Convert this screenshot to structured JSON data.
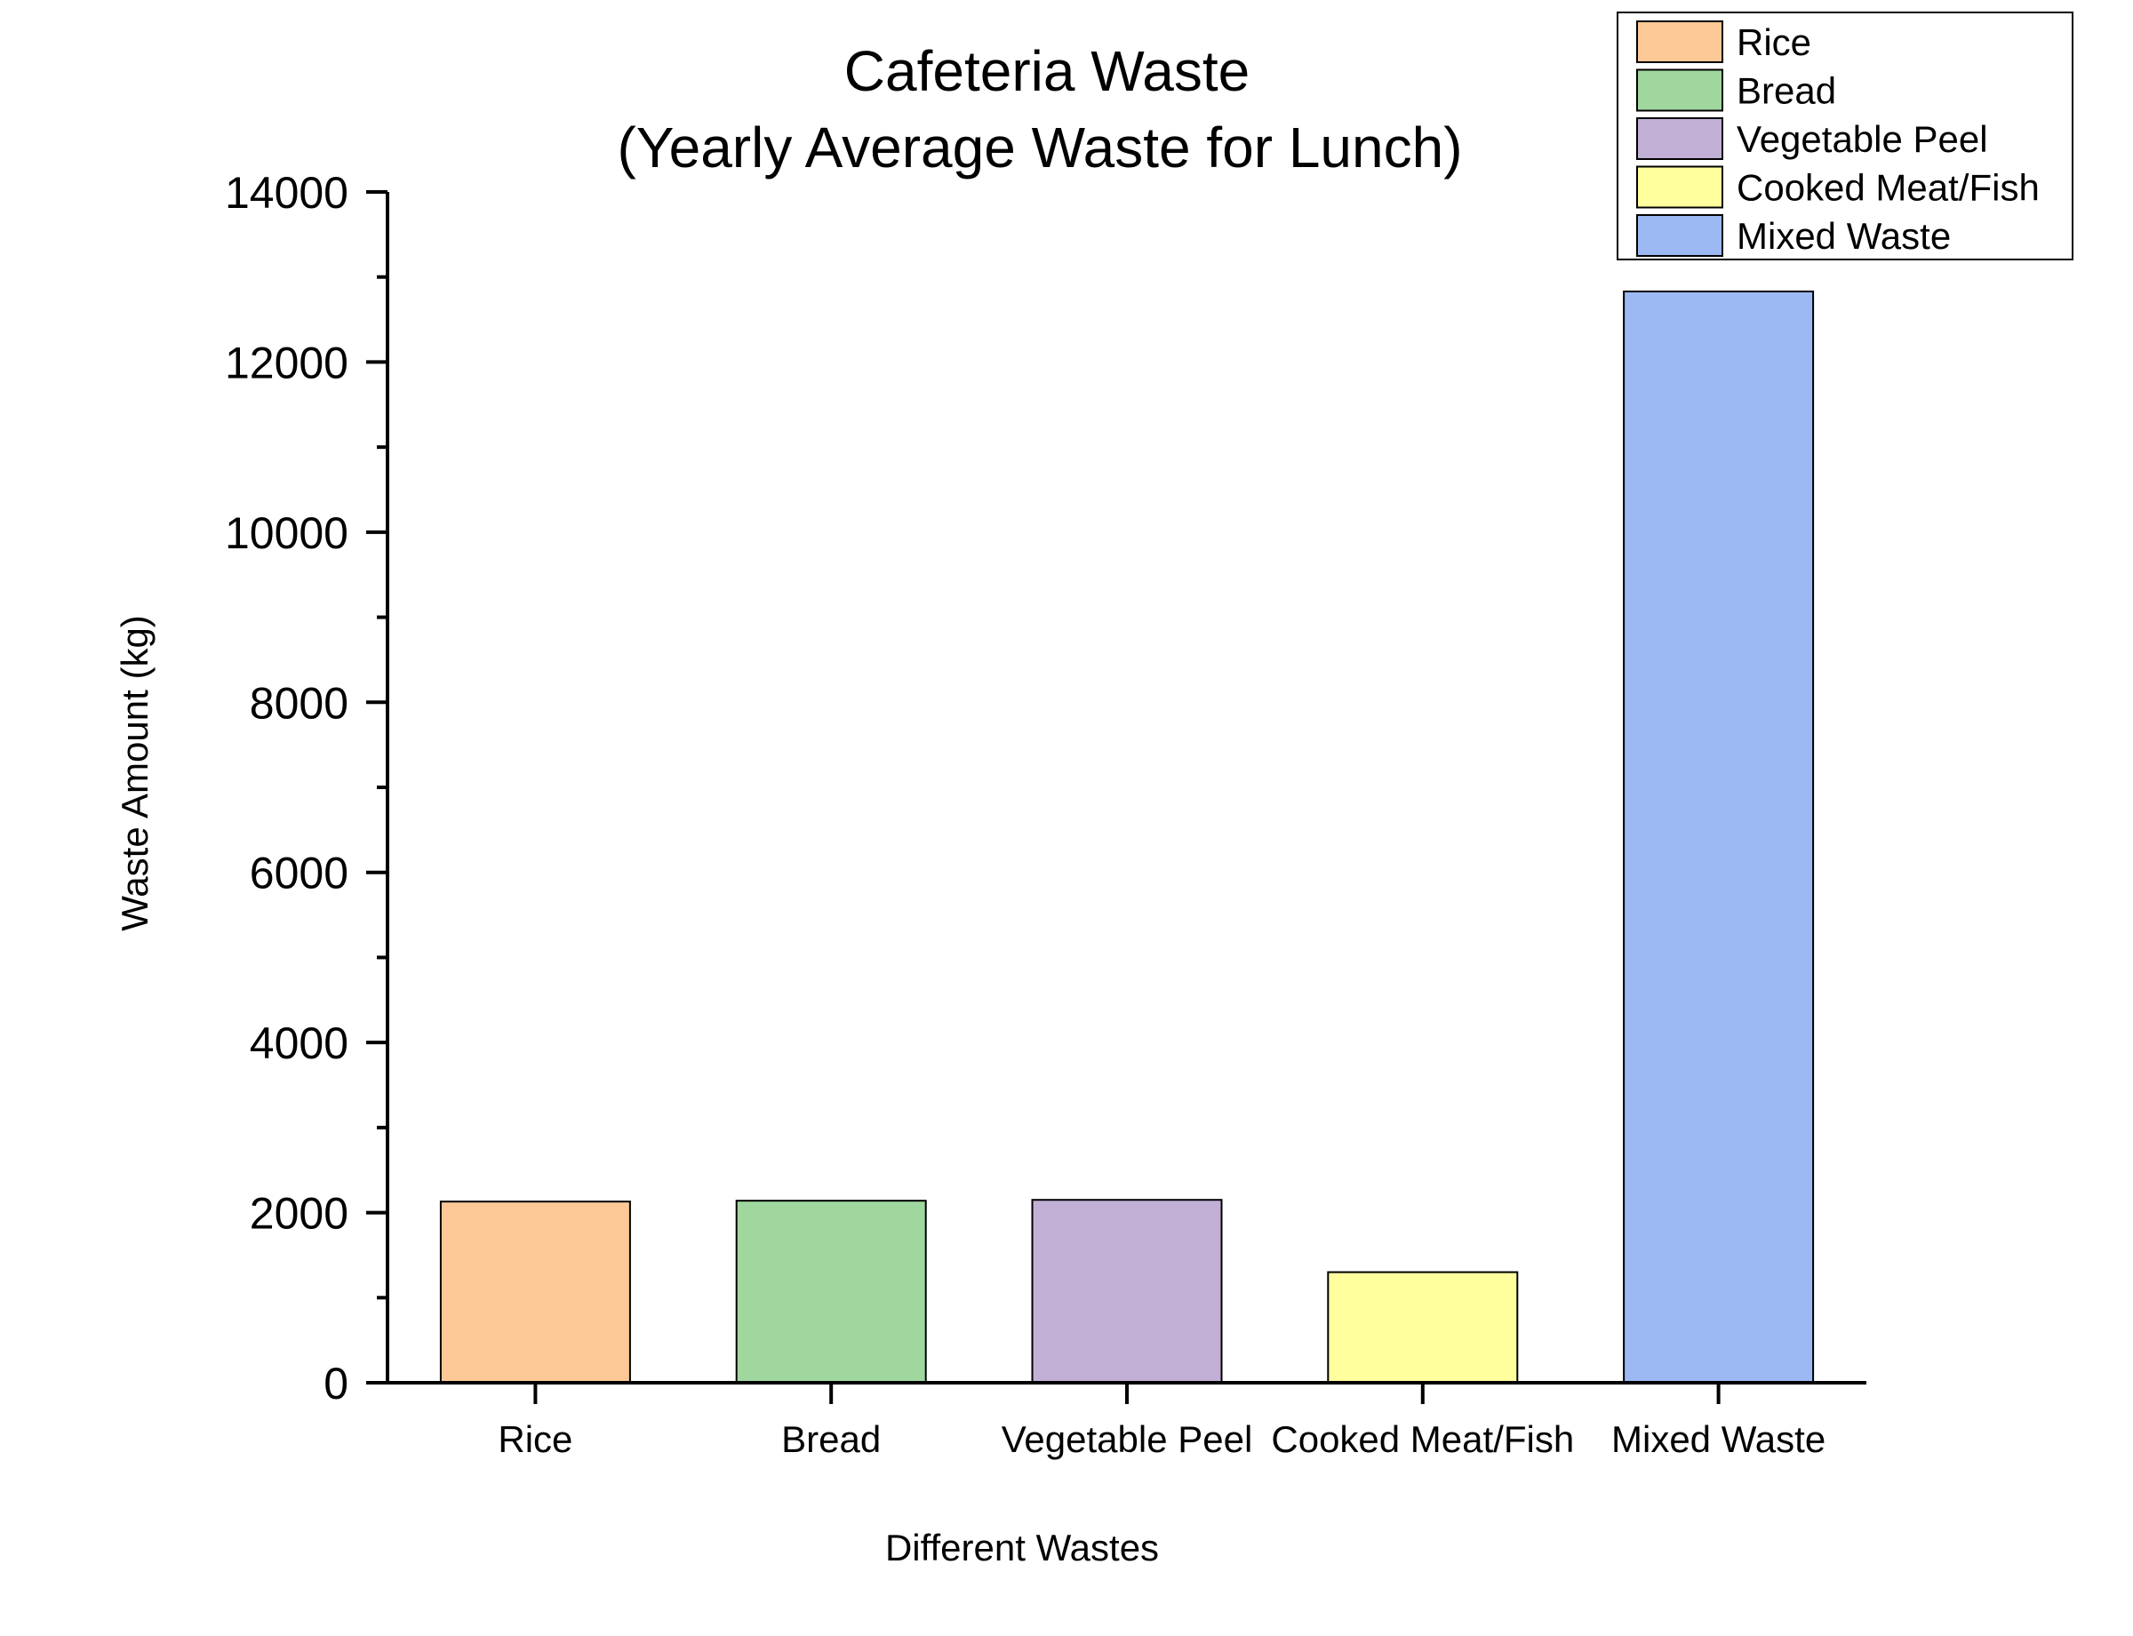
{
  "chart_data": {
    "type": "bar",
    "title": "Cafeteria Waste",
    "subtitle": "(Yearly Average Waste for Lunch)",
    "xlabel": "Different Wastes",
    "ylabel": "Waste Amount (kg)",
    "categories": [
      "Rice",
      "Bread",
      "Vegetable Peel",
      "Cooked Meat/Fish",
      "Mixed Waste"
    ],
    "values": [
      2130,
      2140,
      2150,
      1300,
      12830
    ],
    "colors": [
      "#FBC896",
      "#9FD79E",
      "#C1AFD5",
      "#FFFF9E",
      "#9DB9F3"
    ],
    "ylim": [
      0,
      14000
    ],
    "yticks": [
      0,
      2000,
      4000,
      6000,
      8000,
      10000,
      12000,
      14000
    ],
    "ytick_labels": [
      "0",
      "2000",
      "4000",
      "6000",
      "8000",
      "10000",
      "12000",
      "14000"
    ],
    "grid": false,
    "legend": {
      "position": "top-right",
      "entries": [
        "Rice",
        "Bread",
        "Vegetable Peel",
        "Cooked Meat/Fish",
        "Mixed Waste"
      ]
    }
  }
}
